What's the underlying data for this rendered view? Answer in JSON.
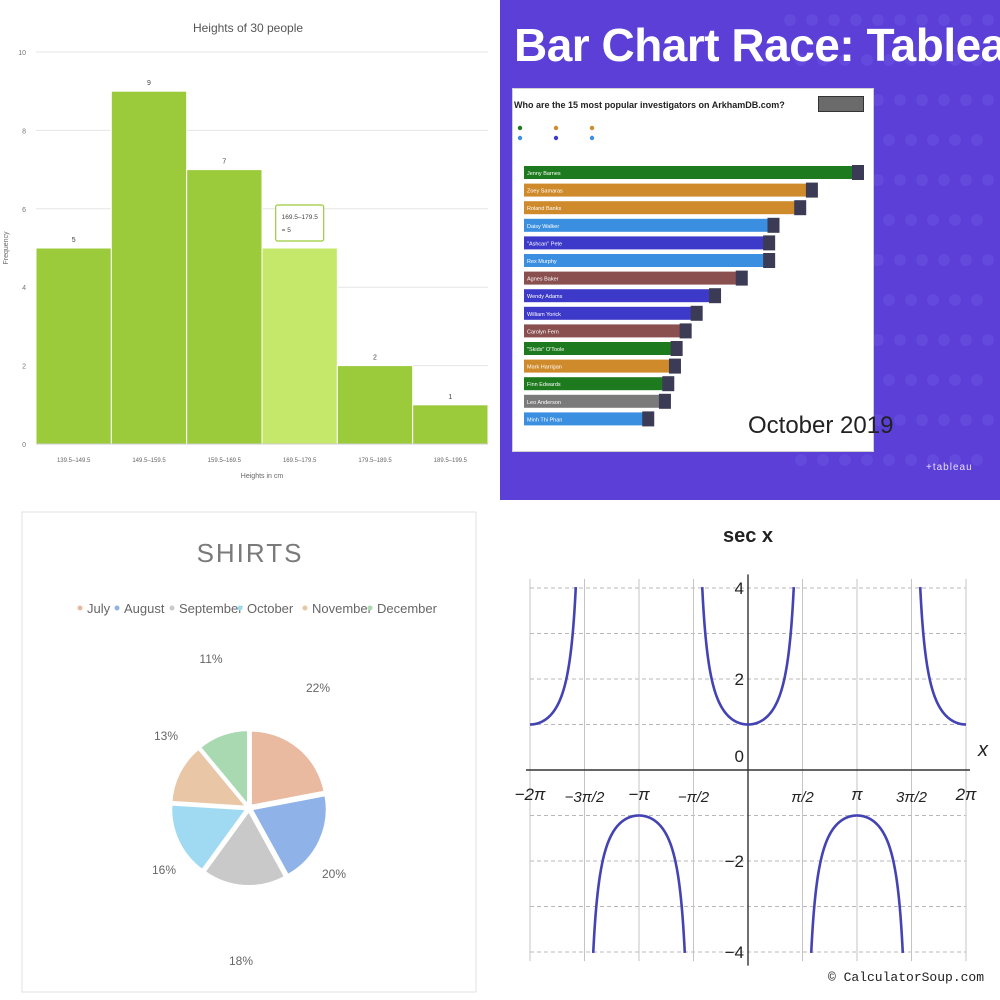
{
  "chart_data": [
    {
      "type": "bar",
      "title": "Heights of 30 people",
      "xlabel": "Heights in cm",
      "ylabel": "Frequency",
      "categories": [
        "139.5–149.5",
        "149.5–159.5",
        "159.5–169.5",
        "169.5–179.5",
        "179.5–189.5",
        "189.5–199.5"
      ],
      "values": [
        5,
        9,
        7,
        5,
        2,
        1
      ],
      "data_labels": [
        "5",
        "9",
        "7",
        "",
        "2",
        "1"
      ],
      "ylim": [
        0,
        10
      ],
      "yticks": [
        "0",
        "2",
        "4",
        "6",
        "8",
        "10"
      ],
      "tooltip": {
        "line1": "169.5–179.5",
        "line2": "= 5"
      },
      "colors": {
        "bar": "#9bcb3b",
        "highlight": "#c5e86b"
      },
      "grid": true
    },
    {
      "type": "bar",
      "title": "Bar Chart Race: Tableau",
      "subtitle": "Who are the 15 most popular investigators on ArkhamDB.com?",
      "period": "October 2019",
      "brand": "+tableau",
      "categories": [
        "Jenny Barnes",
        "Zoey Samaras",
        "Roland Banks",
        "Daisy Walker",
        "\"Ashcan\" Pete",
        "Rex Murphy",
        "Agnes Baker",
        "Wendy Adams",
        "William Yorick",
        "Carolyn Fern",
        "\"Skids\" O'Toole",
        "Mark Harrigan",
        "Finn Edwards",
        "Leo Anderson",
        "Minh Thi Phan"
      ],
      "values": [
        988,
        850,
        815,
        735,
        722,
        722,
        640,
        560,
        505,
        472,
        445,
        440,
        420,
        410,
        360
      ],
      "colors": [
        "#1e7a1e",
        "#cf8a2b",
        "#cf8a2b",
        "#3a8fe0",
        "#3d3ac9",
        "#3a8fe0",
        "#8a4f4f",
        "#3d3ac9",
        "#3d3ac9",
        "#8a4f4f",
        "#1e7a1e",
        "#cf8a2b",
        "#1e7a1e",
        "#7a7a7a",
        "#3a8fe0"
      ]
    },
    {
      "type": "pie",
      "title": "SHIRTS",
      "categories": [
        "July",
        "August",
        "September",
        "October",
        "November",
        "December"
      ],
      "values": [
        22,
        20,
        18,
        16,
        13,
        11
      ],
      "labels": [
        "22%",
        "20%",
        "18%",
        "16%",
        "13%",
        "11%"
      ],
      "colors": [
        "#e9b9a0",
        "#8fb2e8",
        "#c9c9c9",
        "#9fdaf2",
        "#e8c6a6",
        "#a9d9b0"
      ]
    },
    {
      "type": "line",
      "title": "sec x",
      "xlabel": "x",
      "xlim": [
        -6.2832,
        6.2832
      ],
      "ylim": [
        -4,
        4
      ],
      "xticks": [
        "−2π",
        "−3π/2",
        "−π",
        "−π/2",
        "π/2",
        "π",
        "3π/2",
        "2π"
      ],
      "yticks": [
        "4",
        "2",
        "0",
        "−2",
        "−4"
      ],
      "function": "sec(x)",
      "credit": "© CalculatorSoup.com",
      "colors": {
        "curve": "#4343b3"
      }
    }
  ]
}
